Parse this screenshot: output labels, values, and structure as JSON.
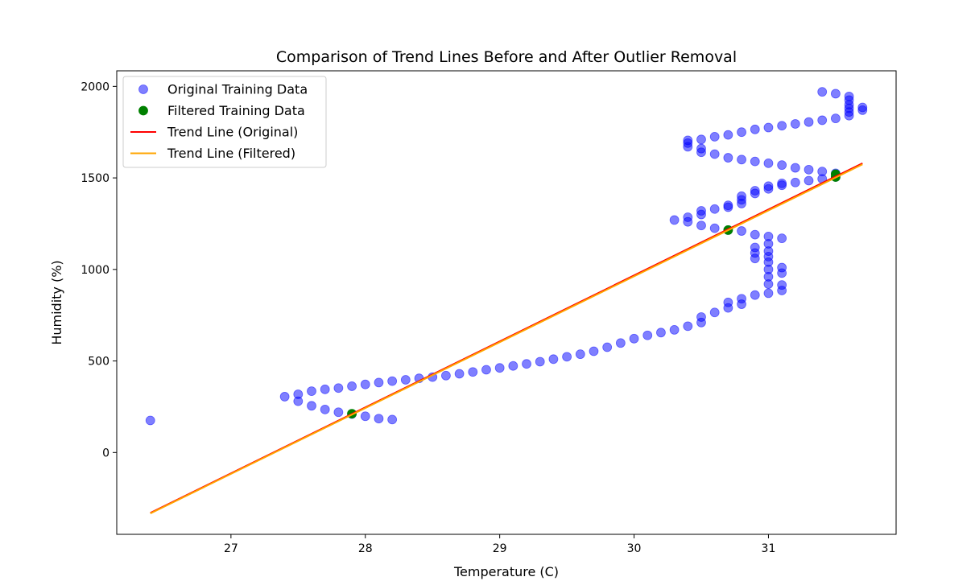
{
  "chart_data": {
    "type": "scatter",
    "title": "Comparison of Trend Lines Before and After Outlier Removal",
    "xlabel": "Temperature (C)",
    "ylabel": "Humidity (%)",
    "xlim": [
      26.15,
      31.95
    ],
    "ylim": [
      -447,
      2085
    ],
    "xticks": [
      27,
      28,
      29,
      30,
      31
    ],
    "yticks": [
      0,
      500,
      1000,
      1500,
      2000
    ],
    "grid": false,
    "legend_position": "upper-left",
    "series": [
      {
        "name": "Original Training Data",
        "kind": "scatter",
        "color": "#0000ff",
        "alpha": 0.5,
        "points": [
          [
            26.4,
            175
          ],
          [
            28.2,
            180
          ],
          [
            31.4,
            1970
          ],
          [
            27.4,
            305
          ],
          [
            27.5,
            318
          ],
          [
            27.6,
            335
          ],
          [
            27.7,
            345
          ],
          [
            27.8,
            352
          ],
          [
            27.9,
            362
          ],
          [
            28.0,
            372
          ],
          [
            28.1,
            382
          ],
          [
            28.2,
            390
          ],
          [
            28.3,
            397
          ],
          [
            28.4,
            405
          ],
          [
            28.5,
            412
          ],
          [
            28.6,
            420
          ],
          [
            28.7,
            430
          ],
          [
            28.8,
            440
          ],
          [
            28.9,
            452
          ],
          [
            29.0,
            462
          ],
          [
            29.1,
            473
          ],
          [
            29.2,
            484
          ],
          [
            29.3,
            496
          ],
          [
            29.4,
            510
          ],
          [
            29.5,
            523
          ],
          [
            29.6,
            537
          ],
          [
            29.7,
            553
          ],
          [
            29.8,
            575
          ],
          [
            29.9,
            598
          ],
          [
            30.0,
            622
          ],
          [
            30.1,
            640
          ],
          [
            30.2,
            655
          ],
          [
            30.3,
            670
          ],
          [
            30.4,
            690
          ],
          [
            30.5,
            710
          ],
          [
            30.5,
            740
          ],
          [
            30.6,
            765
          ],
          [
            30.7,
            790
          ],
          [
            30.7,
            820
          ],
          [
            30.8,
            810
          ],
          [
            30.8,
            840
          ],
          [
            30.9,
            860
          ],
          [
            31.0,
            870
          ],
          [
            31.1,
            885
          ],
          [
            31.1,
            915
          ],
          [
            31.0,
            920
          ],
          [
            31.0,
            960
          ],
          [
            31.0,
            1000
          ],
          [
            31.0,
            1040
          ],
          [
            31.0,
            1070
          ],
          [
            31.0,
            1100
          ],
          [
            31.0,
            1140
          ],
          [
            31.0,
            1180
          ],
          [
            31.1,
            980
          ],
          [
            31.1,
            1010
          ],
          [
            31.1,
            1170
          ],
          [
            30.9,
            1060
          ],
          [
            30.9,
            1090
          ],
          [
            30.9,
            1120
          ],
          [
            30.9,
            1190
          ],
          [
            27.5,
            280
          ],
          [
            27.6,
            255
          ],
          [
            27.7,
            235
          ],
          [
            27.8,
            220
          ],
          [
            27.9,
            210
          ],
          [
            28.0,
            198
          ],
          [
            28.1,
            185
          ],
          [
            30.3,
            1270
          ],
          [
            30.4,
            1285
          ],
          [
            30.4,
            1260
          ],
          [
            30.5,
            1300
          ],
          [
            30.5,
            1320
          ],
          [
            30.5,
            1240
          ],
          [
            30.6,
            1330
          ],
          [
            30.6,
            1225
          ],
          [
            30.7,
            1340
          ],
          [
            30.7,
            1350
          ],
          [
            30.7,
            1215
          ],
          [
            30.8,
            1360
          ],
          [
            30.8,
            1380
          ],
          [
            30.8,
            1400
          ],
          [
            30.8,
            1210
          ],
          [
            30.9,
            1415
          ],
          [
            30.9,
            1430
          ],
          [
            31.0,
            1440
          ],
          [
            31.0,
            1455
          ],
          [
            31.1,
            1460
          ],
          [
            31.1,
            1470
          ],
          [
            31.2,
            1475
          ],
          [
            31.3,
            1485
          ],
          [
            31.4,
            1495
          ],
          [
            31.5,
            1505
          ],
          [
            30.4,
            1670
          ],
          [
            30.4,
            1690
          ],
          [
            30.4,
            1705
          ],
          [
            30.5,
            1640
          ],
          [
            30.5,
            1660
          ],
          [
            30.5,
            1710
          ],
          [
            30.6,
            1630
          ],
          [
            30.6,
            1725
          ],
          [
            30.7,
            1610
          ],
          [
            30.7,
            1735
          ],
          [
            30.8,
            1600
          ],
          [
            30.8,
            1750
          ],
          [
            30.9,
            1590
          ],
          [
            30.9,
            1765
          ],
          [
            31.0,
            1580
          ],
          [
            31.0,
            1775
          ],
          [
            31.1,
            1570
          ],
          [
            31.1,
            1785
          ],
          [
            31.2,
            1555
          ],
          [
            31.2,
            1795
          ],
          [
            31.3,
            1545
          ],
          [
            31.3,
            1805
          ],
          [
            31.4,
            1535
          ],
          [
            31.4,
            1815
          ],
          [
            31.5,
            1525
          ],
          [
            31.5,
            1825
          ],
          [
            31.6,
            1840
          ],
          [
            31.6,
            1860
          ],
          [
            31.6,
            1880
          ],
          [
            31.6,
            1900
          ],
          [
            31.6,
            1925
          ],
          [
            31.6,
            1945
          ],
          [
            31.5,
            1960
          ],
          [
            31.7,
            1870
          ],
          [
            31.7,
            1885
          ]
        ]
      },
      {
        "name": "Filtered Training Data",
        "kind": "scatter",
        "color": "#008000",
        "alpha": 1,
        "points": [
          [
            27.9,
            212
          ],
          [
            30.7,
            1215
          ],
          [
            31.5,
            1505
          ],
          [
            31.5,
            1520
          ]
        ]
      },
      {
        "name": "Trend Line (Original)",
        "kind": "line",
        "color": "#ff0000",
        "points": [
          [
            26.4,
            -330
          ],
          [
            31.7,
            1580
          ]
        ]
      },
      {
        "name": "Trend Line (Filtered)",
        "kind": "line",
        "color": "#ffa500",
        "points": [
          [
            26.4,
            -333
          ],
          [
            31.7,
            1574
          ]
        ]
      }
    ]
  }
}
